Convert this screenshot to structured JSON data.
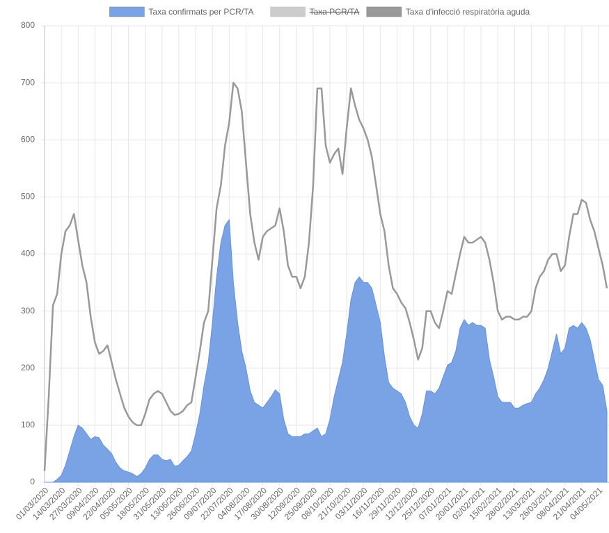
{
  "chart_data": {
    "type": "area-line",
    "categories": [
      "01/03/2020",
      null,
      null,
      null,
      "14/03/2020",
      null,
      null,
      null,
      "27/03/2020",
      null,
      null,
      null,
      "09/04/2020",
      null,
      null,
      null,
      "22/04/2020",
      null,
      null,
      null,
      "05/05/2020",
      null,
      null,
      null,
      "18/05/2020",
      null,
      null,
      null,
      "31/05/2020",
      null,
      null,
      null,
      "13/06/2020",
      null,
      null,
      null,
      "26/06/2020",
      null,
      null,
      null,
      "09/07/2020",
      null,
      null,
      null,
      "22/07/2020",
      null,
      null,
      null,
      "04/08/2020",
      null,
      null,
      null,
      "17/08/2020",
      null,
      null,
      null,
      "30/08/2020",
      null,
      null,
      null,
      "12/09/2020",
      null,
      null,
      null,
      "25/09/2020",
      null,
      null,
      null,
      "08/10/2020",
      null,
      null,
      null,
      "21/10/2020",
      null,
      null,
      null,
      "03/11/2020",
      null,
      null,
      null,
      "16/11/2020",
      null,
      null,
      null,
      "29/11/2020",
      null,
      null,
      null,
      "12/12/2020",
      null,
      null,
      null,
      "25/12/2020",
      null,
      null,
      null,
      "07/01/2021",
      null,
      null,
      null,
      "20/01/2021",
      null,
      null,
      null,
      "02/02/2021",
      null,
      null,
      null,
      "15/02/2021",
      null,
      null,
      null,
      "28/02/2021",
      null,
      null,
      null,
      "13/03/2021",
      null,
      null,
      null,
      "26/03/2021",
      null,
      null,
      null,
      "08/04/2021",
      null,
      null,
      null,
      "21/04/2021",
      null,
      null,
      null,
      "04/05/2021",
      null,
      null
    ],
    "series": [
      {
        "name": "Taxa confirmats per PCR/TA",
        "color": "#7aa3e5",
        "kind": "area",
        "values": [
          0,
          0,
          0,
          5,
          12,
          30,
          55,
          80,
          100,
          95,
          85,
          75,
          80,
          78,
          65,
          58,
          50,
          35,
          25,
          20,
          18,
          15,
          10,
          15,
          25,
          40,
          48,
          48,
          40,
          38,
          40,
          28,
          30,
          38,
          45,
          55,
          85,
          120,
          170,
          210,
          280,
          360,
          420,
          450,
          460,
          350,
          280,
          230,
          200,
          160,
          140,
          135,
          130,
          140,
          150,
          162,
          155,
          110,
          85,
          80,
          80,
          80,
          85,
          85,
          90,
          95,
          80,
          85,
          110,
          150,
          180,
          210,
          260,
          320,
          350,
          360,
          350,
          350,
          340,
          310,
          280,
          220,
          175,
          165,
          160,
          155,
          140,
          115,
          100,
          95,
          120,
          160,
          160,
          155,
          165,
          185,
          205,
          210,
          230,
          270,
          285,
          275,
          280,
          275,
          275,
          270,
          215,
          185,
          150,
          140,
          140,
          140,
          130,
          130,
          135,
          138,
          140,
          155,
          165,
          180,
          200,
          230,
          260,
          225,
          235,
          270,
          275,
          270,
          280,
          270,
          250,
          215,
          180,
          170,
          125
        ]
      },
      {
        "name": "Taxa PCR/TA",
        "color": "#cccccc",
        "hidden": true
      },
      {
        "name": "Taxa d'infecció respiratòria aguda",
        "color": "#999999",
        "kind": "line",
        "values": [
          20,
          150,
          310,
          330,
          400,
          440,
          450,
          470,
          425,
          380,
          350,
          290,
          245,
          225,
          230,
          240,
          210,
          180,
          155,
          130,
          115,
          105,
          100,
          100,
          120,
          145,
          155,
          160,
          155,
          140,
          125,
          118,
          120,
          125,
          135,
          140,
          185,
          230,
          280,
          300,
          390,
          480,
          520,
          590,
          630,
          700,
          690,
          650,
          560,
          470,
          420,
          390,
          430,
          440,
          445,
          450,
          480,
          440,
          380,
          360,
          360,
          340,
          360,
          420,
          520,
          690,
          690,
          590,
          560,
          575,
          585,
          540,
          620,
          690,
          660,
          635,
          620,
          600,
          570,
          520,
          470,
          440,
          380,
          340,
          330,
          315,
          305,
          280,
          250,
          215,
          235,
          300,
          300,
          280,
          270,
          300,
          335,
          330,
          365,
          400,
          430,
          420,
          420,
          425,
          430,
          420,
          390,
          350,
          300,
          285,
          290,
          290,
          285,
          285,
          290,
          290,
          300,
          340,
          360,
          370,
          390,
          400,
          400,
          370,
          380,
          430,
          470,
          470,
          495,
          490,
          460,
          440,
          410,
          380,
          340
        ]
      }
    ],
    "ylim": [
      0,
      800
    ],
    "yticks": [
      0,
      100,
      200,
      300,
      400,
      500,
      600,
      700,
      800
    ],
    "grid": true,
    "legend": "top"
  }
}
